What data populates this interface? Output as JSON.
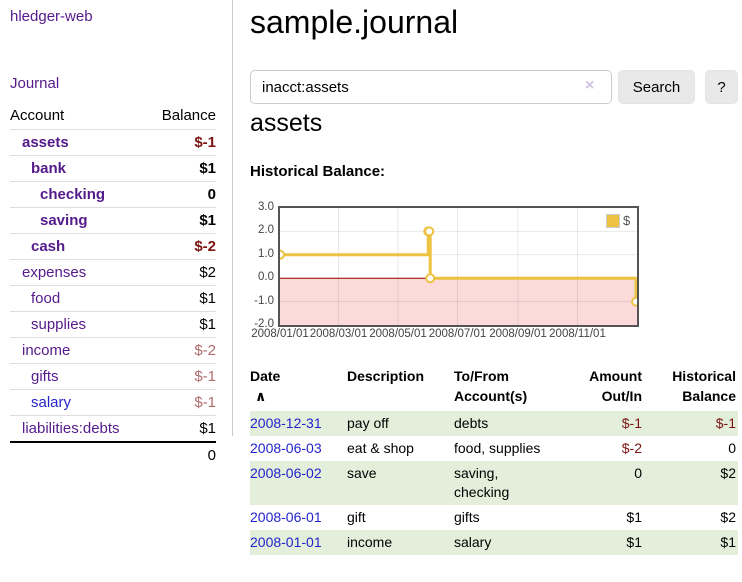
{
  "sidebar": {
    "brand": "hledger-web",
    "nav_journal": "Journal",
    "columns": {
      "account": "Account",
      "balance": "Balance"
    },
    "accounts": [
      {
        "name": "assets",
        "level": "1",
        "balance": "$-1",
        "emphasized": "true",
        "neg": "strong",
        "link": "visited"
      },
      {
        "name": "bank",
        "level": "2",
        "balance": "$1",
        "emphasized": "true",
        "neg": "none",
        "link": "visited"
      },
      {
        "name": "checking",
        "level": "3",
        "balance": "0",
        "emphasized": "true",
        "neg": "none",
        "link": "visited"
      },
      {
        "name": "saving",
        "level": "3",
        "balance": "$1",
        "emphasized": "true",
        "neg": "none",
        "link": "visited"
      },
      {
        "name": "cash",
        "level": "2",
        "balance": "$-2",
        "emphasized": "true",
        "neg": "strong",
        "link": "visited"
      },
      {
        "name": "expenses",
        "level": "1",
        "balance": "$2",
        "emphasized": "false",
        "neg": "none",
        "link": "visited"
      },
      {
        "name": "food",
        "level": "2",
        "balance": "$1",
        "emphasized": "false",
        "neg": "none",
        "link": "visited"
      },
      {
        "name": "supplies",
        "level": "2",
        "balance": "$1",
        "emphasized": "false",
        "neg": "none",
        "link": "visited"
      },
      {
        "name": "income",
        "level": "1",
        "balance": "$-2",
        "emphasized": "false",
        "neg": "muted",
        "link": "visited"
      },
      {
        "name": "gifts",
        "level": "2",
        "balance": "$-1",
        "emphasized": "false",
        "neg": "muted",
        "link": "visited"
      },
      {
        "name": "salary",
        "level": "2",
        "balance": "$-1",
        "emphasized": "false",
        "neg": "muted",
        "link": "new"
      },
      {
        "name": "liabilities:debts",
        "level": "1",
        "balance": "$1",
        "emphasized": "false",
        "neg": "none",
        "link": "visited"
      }
    ],
    "total": "0"
  },
  "main": {
    "title": "sample.journal",
    "search": {
      "value": "inacct:assets",
      "clear_icon": "×",
      "search_button": "Search",
      "help_button": "?"
    },
    "account_heading": "assets",
    "chart_heading": "Historical Balance:"
  },
  "chart_data": {
    "type": "line",
    "step": true,
    "title": "Historical Balance:",
    "series": [
      {
        "name": "$",
        "color": "#EDC240",
        "points": [
          [
            "2008-01-01",
            1
          ],
          [
            "2008-06-01",
            2
          ],
          [
            "2008-06-02",
            2
          ],
          [
            "2008-06-03",
            0
          ],
          [
            "2008-12-31",
            -1
          ]
        ]
      }
    ],
    "ylim": [
      -2,
      3
    ],
    "yticks": [
      {
        "v": 3,
        "label": "3.0"
      },
      {
        "v": 2,
        "label": "2.0"
      },
      {
        "v": 1,
        "label": "1.0"
      },
      {
        "v": 0,
        "label": "0.0"
      },
      {
        "v": -1,
        "label": "-1.0"
      },
      {
        "v": -2,
        "label": "-2.0"
      }
    ],
    "xticks": [
      {
        "date": "2008-01-01",
        "label": "2008/01/01"
      },
      {
        "date": "2008-03-01",
        "label": "2008/03/01"
      },
      {
        "date": "2008-05-01",
        "label": "2008/05/01"
      },
      {
        "date": "2008-07-01",
        "label": "2008/07/01"
      },
      {
        "date": "2008-09-01",
        "label": "2008/09/01"
      },
      {
        "date": "2008-11-01",
        "label": "2008/11/01"
      }
    ],
    "x_domain": [
      "2008-01-01",
      "2009-01-01"
    ],
    "grid": true,
    "legend_position": "top-right",
    "negative_fill": "#fcdada",
    "zero_line_color": "#990000",
    "border_color": "#545454"
  },
  "register": {
    "sort_icon": "∧",
    "columns": [
      {
        "l1": "Date",
        "l2": ""
      },
      {
        "l1": "Description",
        "l2": ""
      },
      {
        "l1": "To/From",
        "l2": "Account(s)"
      },
      {
        "l1": "Amount",
        "l2": "Out/In"
      },
      {
        "l1": "Historical",
        "l2": "Balance"
      }
    ],
    "rows": [
      {
        "date": "2008-12-31",
        "description": "pay off",
        "accounts": "debts",
        "amount": "$-1",
        "amount_neg": "true",
        "balance": "$-1",
        "balance_neg": "true"
      },
      {
        "date": "2008-06-03",
        "description": "eat & shop",
        "accounts": "food, supplies",
        "amount": "$-2",
        "amount_neg": "true",
        "balance": "0",
        "balance_neg": "false"
      },
      {
        "date": "2008-06-02",
        "description": "save",
        "accounts": "saving,\nchecking",
        "amount": "0",
        "amount_neg": "false",
        "balance": "$2",
        "balance_neg": "false"
      },
      {
        "date": "2008-06-01",
        "description": "gift",
        "accounts": "gifts",
        "amount": "$1",
        "amount_neg": "false",
        "balance": "$2",
        "balance_neg": "false"
      },
      {
        "date": "2008-01-01",
        "description": "income",
        "accounts": "salary",
        "amount": "$1",
        "amount_neg": "false",
        "balance": "$1",
        "balance_neg": "false"
      }
    ]
  }
}
